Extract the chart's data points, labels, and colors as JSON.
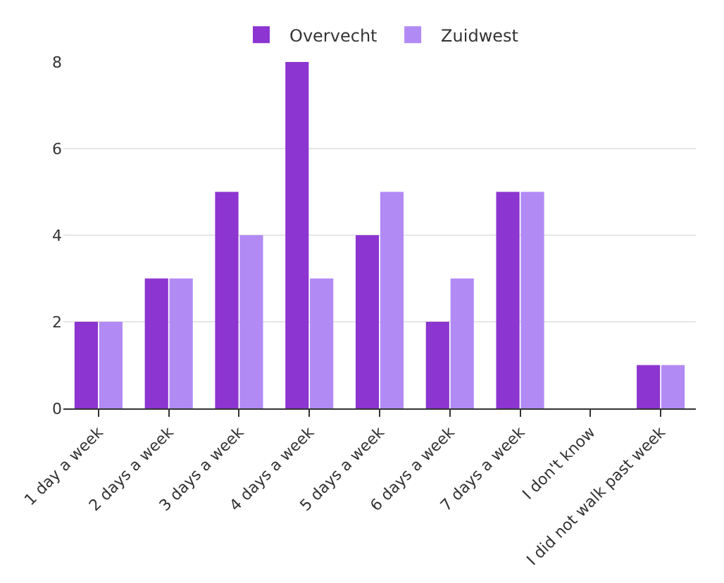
{
  "chart_data": {
    "type": "bar",
    "categories": [
      "1 day a week",
      "2 days a week",
      "3 days a week",
      "4 days a week",
      "5 days a week",
      "6 days a week",
      "7 days a week",
      "I don't know",
      "I did not walk past week"
    ],
    "series": [
      {
        "name": "Overvecht",
        "color": "#8c35d0",
        "values": [
          2,
          3,
          5,
          8,
          4,
          2,
          5,
          0,
          1
        ]
      },
      {
        "name": "Zuidwest",
        "color": "#b28af4",
        "values": [
          2,
          3,
          4,
          3,
          5,
          3,
          5,
          0,
          1
        ]
      }
    ],
    "ylim": [
      0,
      8
    ],
    "yticks": [
      0,
      2,
      4,
      6,
      8
    ],
    "grid": "y",
    "legend": "top"
  }
}
